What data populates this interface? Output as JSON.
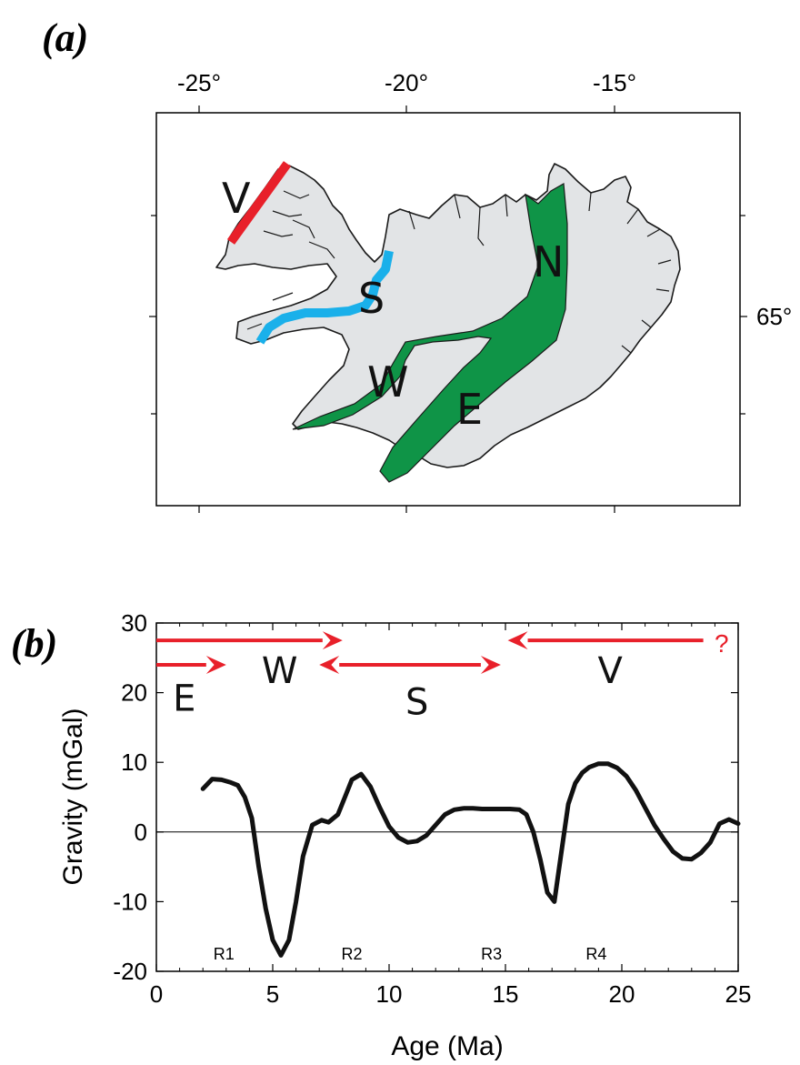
{
  "panel_a": {
    "label": "(a)",
    "lon_ticks": [
      "-25°",
      "-20°",
      "-15°"
    ],
    "lat_tick": "65°",
    "zones": {
      "V": "V",
      "S": "S",
      "W": "W",
      "E": "E",
      "N": "N"
    },
    "colors": {
      "land": "#e2e4e6",
      "rift_zone": "#0f9447",
      "V": "#e8202a",
      "S": "#1ab0ea"
    }
  },
  "panel_b": {
    "label": "(b)",
    "question_mark": "?",
    "arrow_color": "#e8202a"
  },
  "chart_data": {
    "type": "line",
    "xlabel": "Age  (Ma)",
    "ylabel": "Gravity  (mGal)",
    "xlim": [
      0,
      25
    ],
    "ylim": [
      -20,
      30
    ],
    "xticks": [
      0,
      5,
      10,
      15,
      20,
      25
    ],
    "yticks": [
      -20,
      -10,
      0,
      10,
      20,
      30
    ],
    "zero_line": true,
    "series": [
      {
        "x": [
          2.0,
          2.4,
          2.8,
          3.2,
          3.5,
          3.8,
          4.1,
          4.4,
          4.7,
          5.0,
          5.35,
          5.7,
          6.0,
          6.3,
          6.7,
          7.1,
          7.4,
          7.8,
          8.1,
          8.4,
          8.8,
          9.2,
          9.6,
          10.0,
          10.4,
          10.8,
          11.2,
          11.6,
          12.0,
          12.4,
          12.8,
          13.2,
          13.6,
          14.0,
          14.4,
          14.8,
          15.2,
          15.6,
          15.9,
          16.2,
          16.5,
          16.8,
          17.1,
          17.4,
          17.7,
          18.0,
          18.3,
          18.6,
          19.0,
          19.4,
          19.8,
          20.2,
          20.6,
          21.0,
          21.4,
          21.8,
          22.2,
          22.6,
          23.0,
          23.4,
          23.8,
          24.2,
          24.6,
          25.0
        ],
        "y": [
          6.2,
          7.6,
          7.5,
          7.1,
          6.7,
          5.0,
          2.0,
          -5.0,
          -11.0,
          -15.5,
          -17.7,
          -15.5,
          -10.0,
          -3.5,
          1.0,
          1.7,
          1.4,
          2.5,
          5.0,
          7.5,
          8.3,
          6.5,
          3.5,
          0.8,
          -0.8,
          -1.5,
          -1.3,
          -0.5,
          1.0,
          2.5,
          3.2,
          3.4,
          3.4,
          3.3,
          3.3,
          3.3,
          3.3,
          3.2,
          2.5,
          0.0,
          -4.0,
          -8.7,
          -10.0,
          -3.0,
          4.0,
          7.0,
          8.5,
          9.3,
          9.8,
          9.8,
          9.2,
          8.0,
          6.0,
          3.5,
          1.0,
          -1.0,
          -2.8,
          -3.8,
          -3.9,
          -3.0,
          -1.5,
          1.2,
          1.8,
          1.2
        ],
        "color": "#111111"
      }
    ],
    "annotations": [
      {
        "text": "R1",
        "x": 2.9,
        "y": -17.5
      },
      {
        "text": "R2",
        "x": 8.4,
        "y": -17.5
      },
      {
        "text": "R3",
        "x": 14.4,
        "y": -17.5
      },
      {
        "text": "R4",
        "x": 18.9,
        "y": -17.5
      }
    ],
    "zone_arrows": [
      {
        "label": "E",
        "from": 0,
        "to": 3.0,
        "y": 24.0,
        "label_x": 1.2,
        "label_y": 19.5
      },
      {
        "label": "W",
        "from": 0,
        "to": 8.0,
        "y": 27.5,
        "label_x": 5.3,
        "label_y": 23.5
      },
      {
        "label": "S",
        "from": 7.0,
        "to": 14.8,
        "y": 24.0,
        "label_x": 11.2,
        "label_y": 19.0
      },
      {
        "label": "V",
        "from": 23.5,
        "to": 15.1,
        "y": 27.5,
        "label_x": 19.5,
        "label_y": 23.5
      }
    ]
  }
}
